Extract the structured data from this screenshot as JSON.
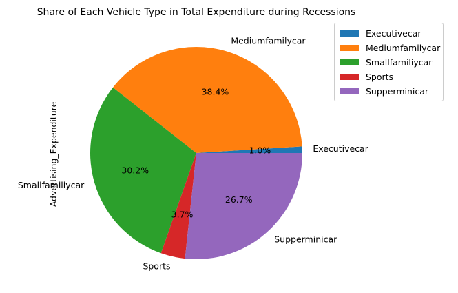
{
  "chart_data": {
    "type": "pie",
    "title": "Share of Each Vehicle Type in Total Expenditure during Recessions",
    "ylabel": "Advertising_Expenditure",
    "categories": [
      "Executivecar",
      "Mediumfamilycar",
      "Smallfamiliycar",
      "Sports",
      "Supperminicar"
    ],
    "values": [
      1.0,
      38.4,
      30.2,
      3.7,
      26.7
    ],
    "percent_labels": [
      "1.0%",
      "38.4%",
      "30.2%",
      "3.7%",
      "26.7%"
    ],
    "colors": [
      "#1f77b4",
      "#ff7f0e",
      "#2ca02c",
      "#d62728",
      "#9467bd"
    ],
    "start_angle_deg": 0,
    "direction": "counterclockwise",
    "legend": {
      "placement": "upper-right-outside",
      "entries": [
        "Executivecar",
        "Mediumfamilycar",
        "Smallfamiliycar",
        "Sports",
        "Supperminicar"
      ]
    }
  }
}
